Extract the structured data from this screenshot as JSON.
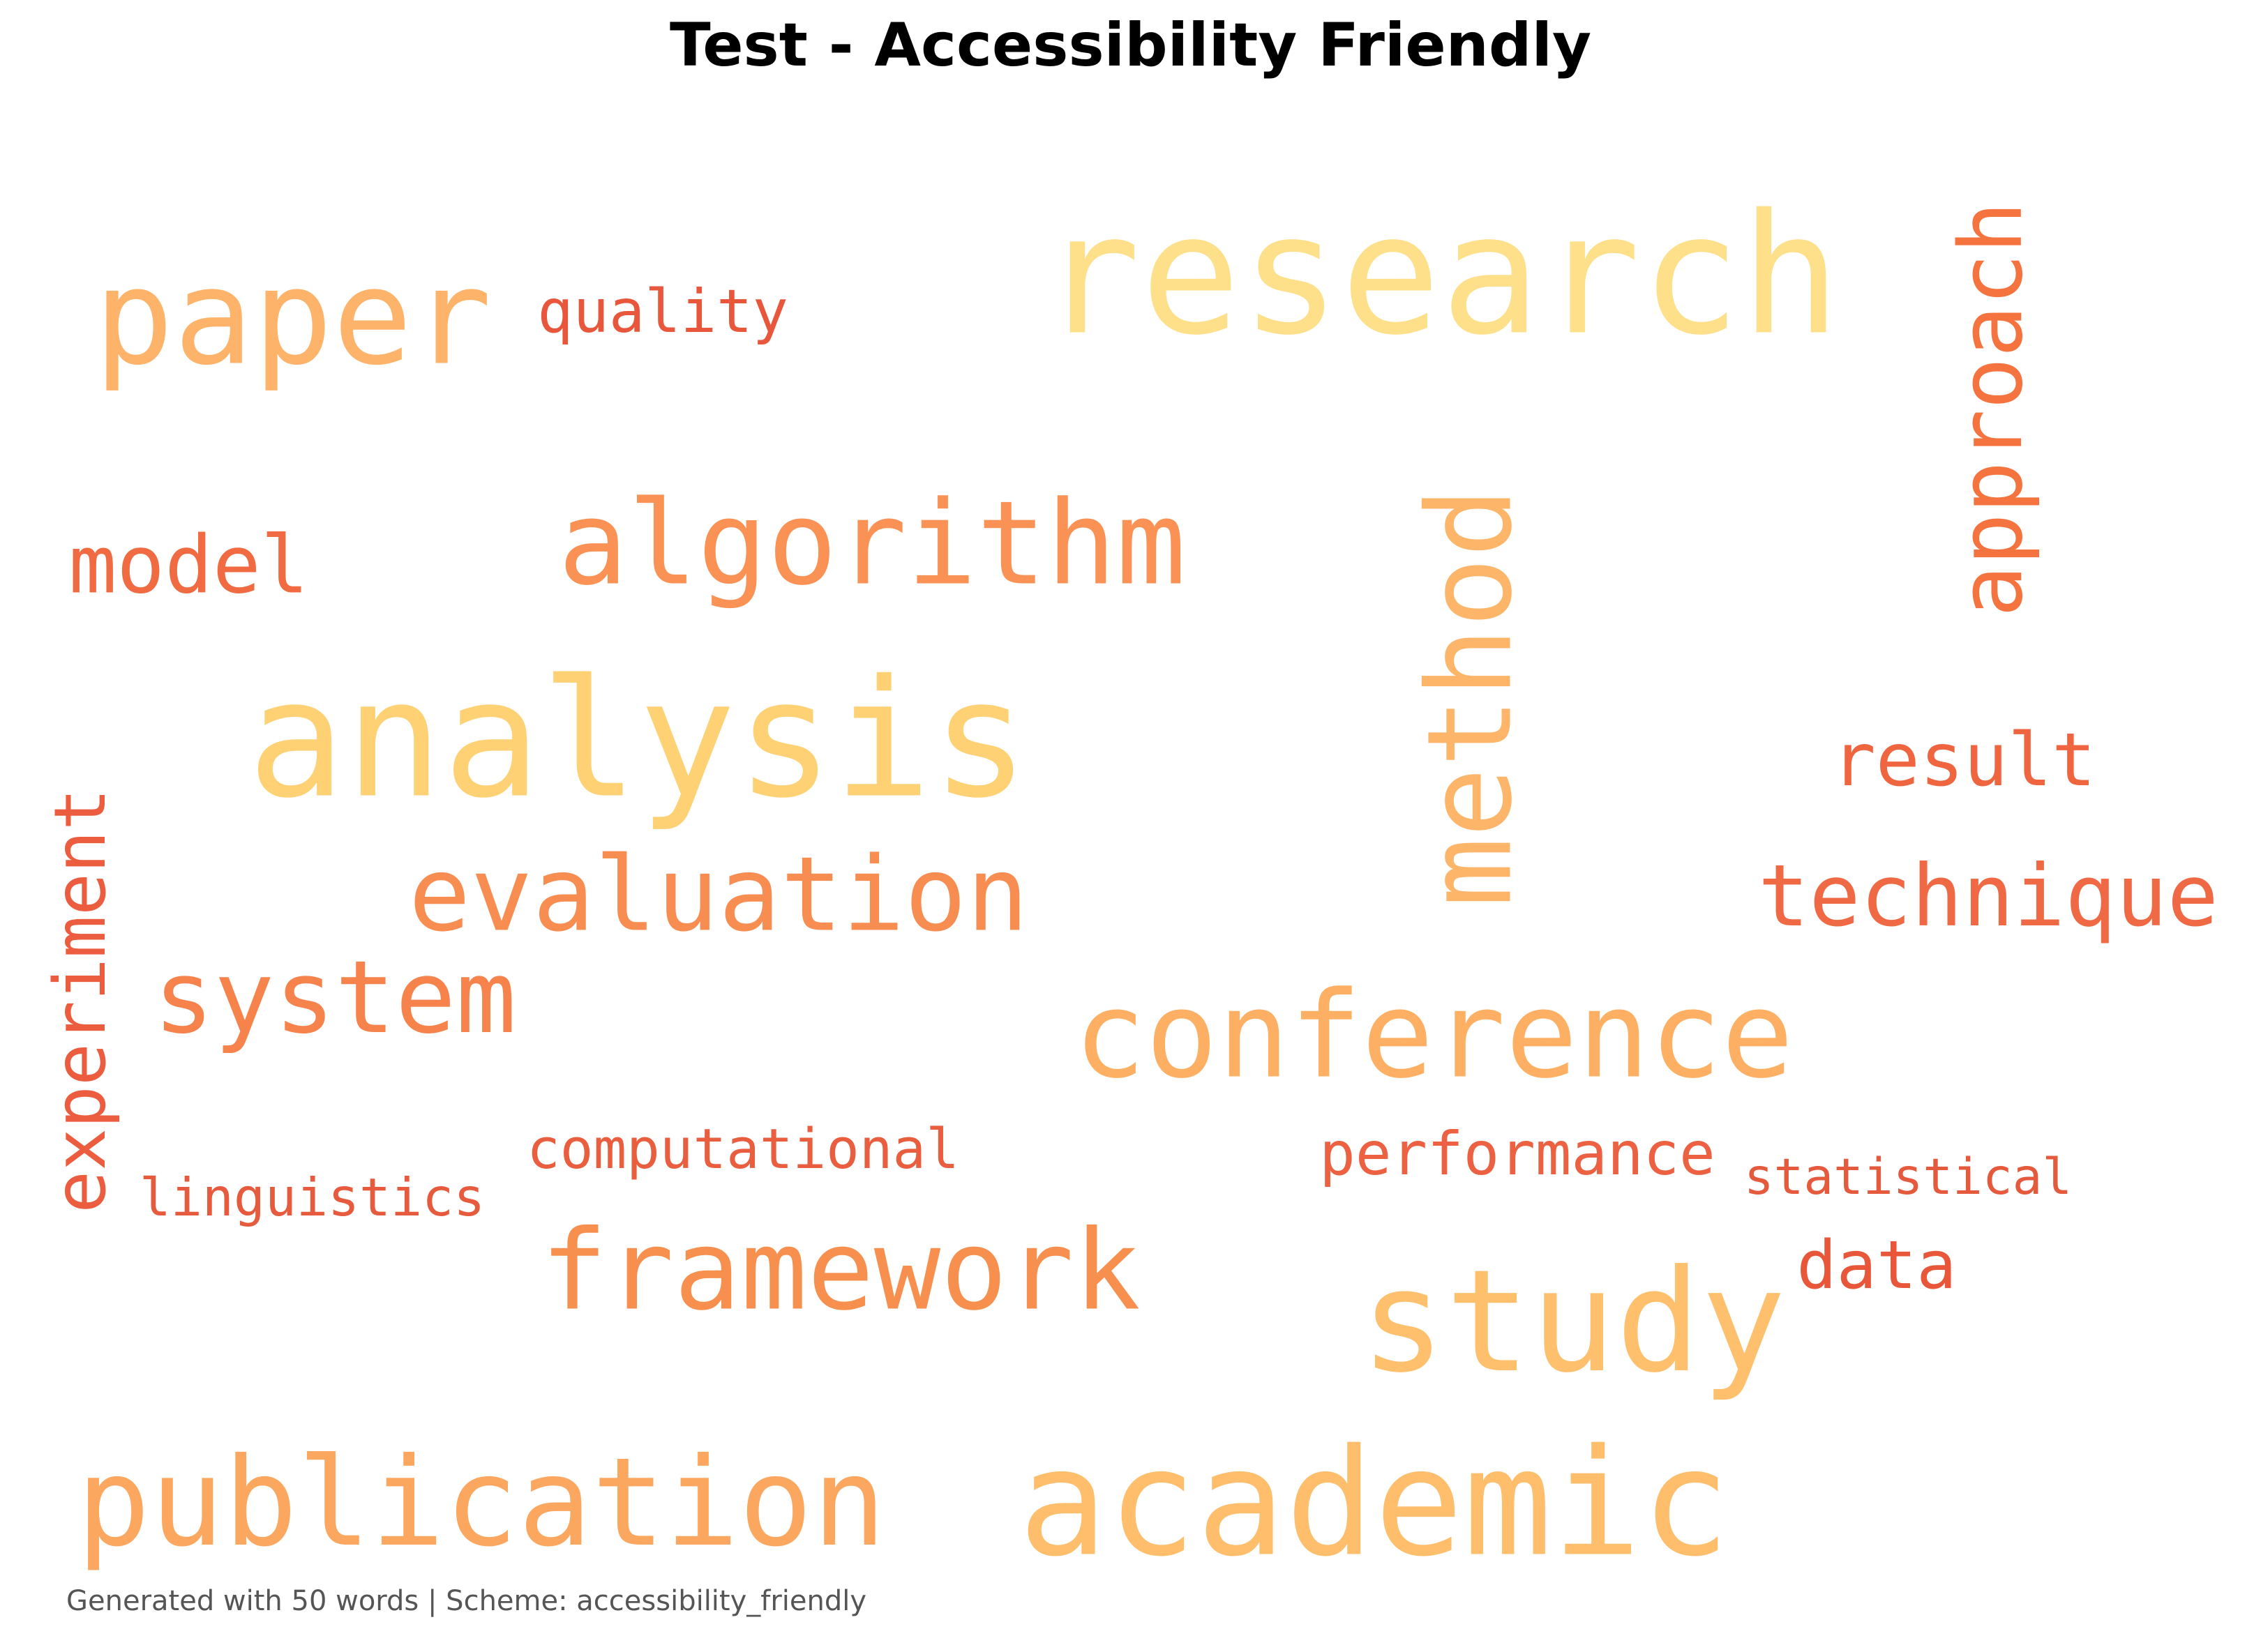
{
  "title": "Test - Accessibility Friendly",
  "footer": "Generated with 50 words | Scheme: accessibility_friendly",
  "words": [
    {
      "text": "research",
      "color": "#FEE08B",
      "orientation": "horizontal"
    },
    {
      "text": "paper",
      "color": "#FDB46A",
      "orientation": "horizontal"
    },
    {
      "text": "quality",
      "color": "#E8573C",
      "orientation": "horizontal"
    },
    {
      "text": "approach",
      "color": "#F4733F",
      "orientation": "vertical"
    },
    {
      "text": "algorithm",
      "color": "#FA9255",
      "orientation": "horizontal"
    },
    {
      "text": "model",
      "color": "#F06B42",
      "orientation": "horizontal"
    },
    {
      "text": "method",
      "color": "#FDB56A",
      "orientation": "vertical"
    },
    {
      "text": "analysis",
      "color": "#FED174",
      "orientation": "horizontal"
    },
    {
      "text": "result",
      "color": "#EF6540",
      "orientation": "horizontal"
    },
    {
      "text": "technique",
      "color": "#EF6A44",
      "orientation": "horizontal"
    },
    {
      "text": "evaluation",
      "color": "#F88D52",
      "orientation": "horizontal"
    },
    {
      "text": "experiment",
      "color": "#EB5D3E",
      "orientation": "vertical"
    },
    {
      "text": "system",
      "color": "#F6834C",
      "orientation": "horizontal"
    },
    {
      "text": "conference",
      "color": "#FDB063",
      "orientation": "horizontal"
    },
    {
      "text": "computational",
      "color": "#E95E3F",
      "orientation": "horizontal"
    },
    {
      "text": "performance",
      "color": "#EB6141",
      "orientation": "horizontal"
    },
    {
      "text": "statistical",
      "color": "#E55A3D",
      "orientation": "horizontal"
    },
    {
      "text": "linguistics",
      "color": "#E65A3D",
      "orientation": "horizontal"
    },
    {
      "text": "framework",
      "color": "#F7904F",
      "orientation": "horizontal"
    },
    {
      "text": "study",
      "color": "#FEC06C",
      "orientation": "horizontal"
    },
    {
      "text": "data",
      "color": "#E9573A",
      "orientation": "horizontal"
    },
    {
      "text": "publication",
      "color": "#FBA760",
      "orientation": "horizontal"
    },
    {
      "text": "academic",
      "color": "#FEBE6C",
      "orientation": "horizontal"
    }
  ]
}
